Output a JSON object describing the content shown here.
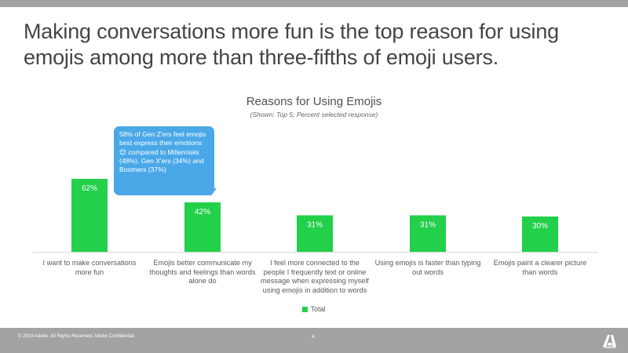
{
  "headline": "Making conversations more fun is the top reason for using emojis among more than three-fifths of emoji users.",
  "callout": {
    "text": "58% of Gen Z'ers feel emojis best express their emotions 😊 compared to Millennials (48%), Gen X'ers (34%) and Boomers (37%)"
  },
  "footer": {
    "copyright": "© 2019 Adobe. All Rights Reserved. Adobe Confidential.",
    "page_number": "4",
    "logo_text": "Adobe"
  },
  "colors": {
    "bar": "#22d04a",
    "callout": "#4aa8e8",
    "frame": "#a3a3a3"
  },
  "chart_data": {
    "type": "bar",
    "title": "Reasons for Using Emojis",
    "subtitle": "(Shown: Top 5; Percent selected response)",
    "categories": [
      "I want to make conversations more fun",
      "Emojis better communicate my thoughts and feelings than words alone do",
      "I feel more connected to the people I frequently text or online message when expressing myself using emojis in addition to words",
      "Using emojis is faster than typing out words",
      "Emojis paint a clearer picture than words"
    ],
    "series": [
      {
        "name": "Total",
        "values": [
          62,
          42,
          31,
          31,
          30
        ]
      }
    ],
    "data_labels": [
      "62%",
      "42%",
      "31%",
      "31%",
      "30%"
    ],
    "ylim": [
      0,
      100
    ],
    "grid": false,
    "legend": "bottom-center"
  }
}
